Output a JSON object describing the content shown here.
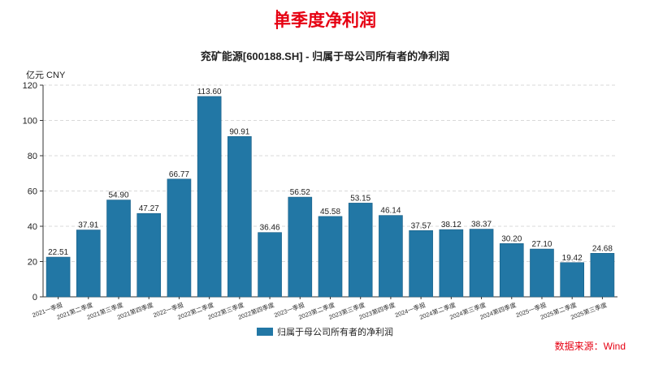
{
  "page": {
    "title": "单季度净利润",
    "source": "数据来源：Wind"
  },
  "chart_data": {
    "type": "bar",
    "title": "兖矿能源[600188.SH] - 归属于母公司所有者的净利润",
    "unit": "亿元  CNY",
    "categories": [
      "2021一季报",
      "2021第二季度",
      "2021第三季度",
      "2021第四季度",
      "2022一季报",
      "2022第二季度",
      "2022第三季度",
      "2022第四季度",
      "2023一季报",
      "2023第二季度",
      "2023第三季度",
      "2023第四季度",
      "2024一季报",
      "2024第二季度",
      "2024第三季度",
      "2024第四季度",
      "2025一季报",
      "2025第二季度",
      "2025第三季度"
    ],
    "series": [
      {
        "name": "归属于母公司所有者的净利润",
        "color": "#2277a5",
        "values": [
          22.51,
          37.91,
          54.9,
          47.27,
          66.77,
          113.6,
          90.91,
          36.46,
          56.52,
          45.58,
          53.15,
          46.14,
          37.57,
          38.12,
          38.37,
          30.2,
          27.1,
          19.42,
          24.68
        ],
        "labels": [
          "22.51",
          "37.91",
          "54.90",
          "47.27",
          "66.77",
          "113.60",
          "90.91",
          "36.46",
          "56.52",
          "45.58",
          "53.15",
          "46.14",
          "37.57",
          "38.12",
          "38.37",
          "30.20",
          "27.10",
          "19.42",
          "24.68"
        ]
      }
    ],
    "ylim": [
      0,
      120
    ],
    "yticks": [
      0,
      20,
      40,
      60,
      80,
      100,
      120
    ],
    "grid": true,
    "legend": "bottom-center"
  }
}
